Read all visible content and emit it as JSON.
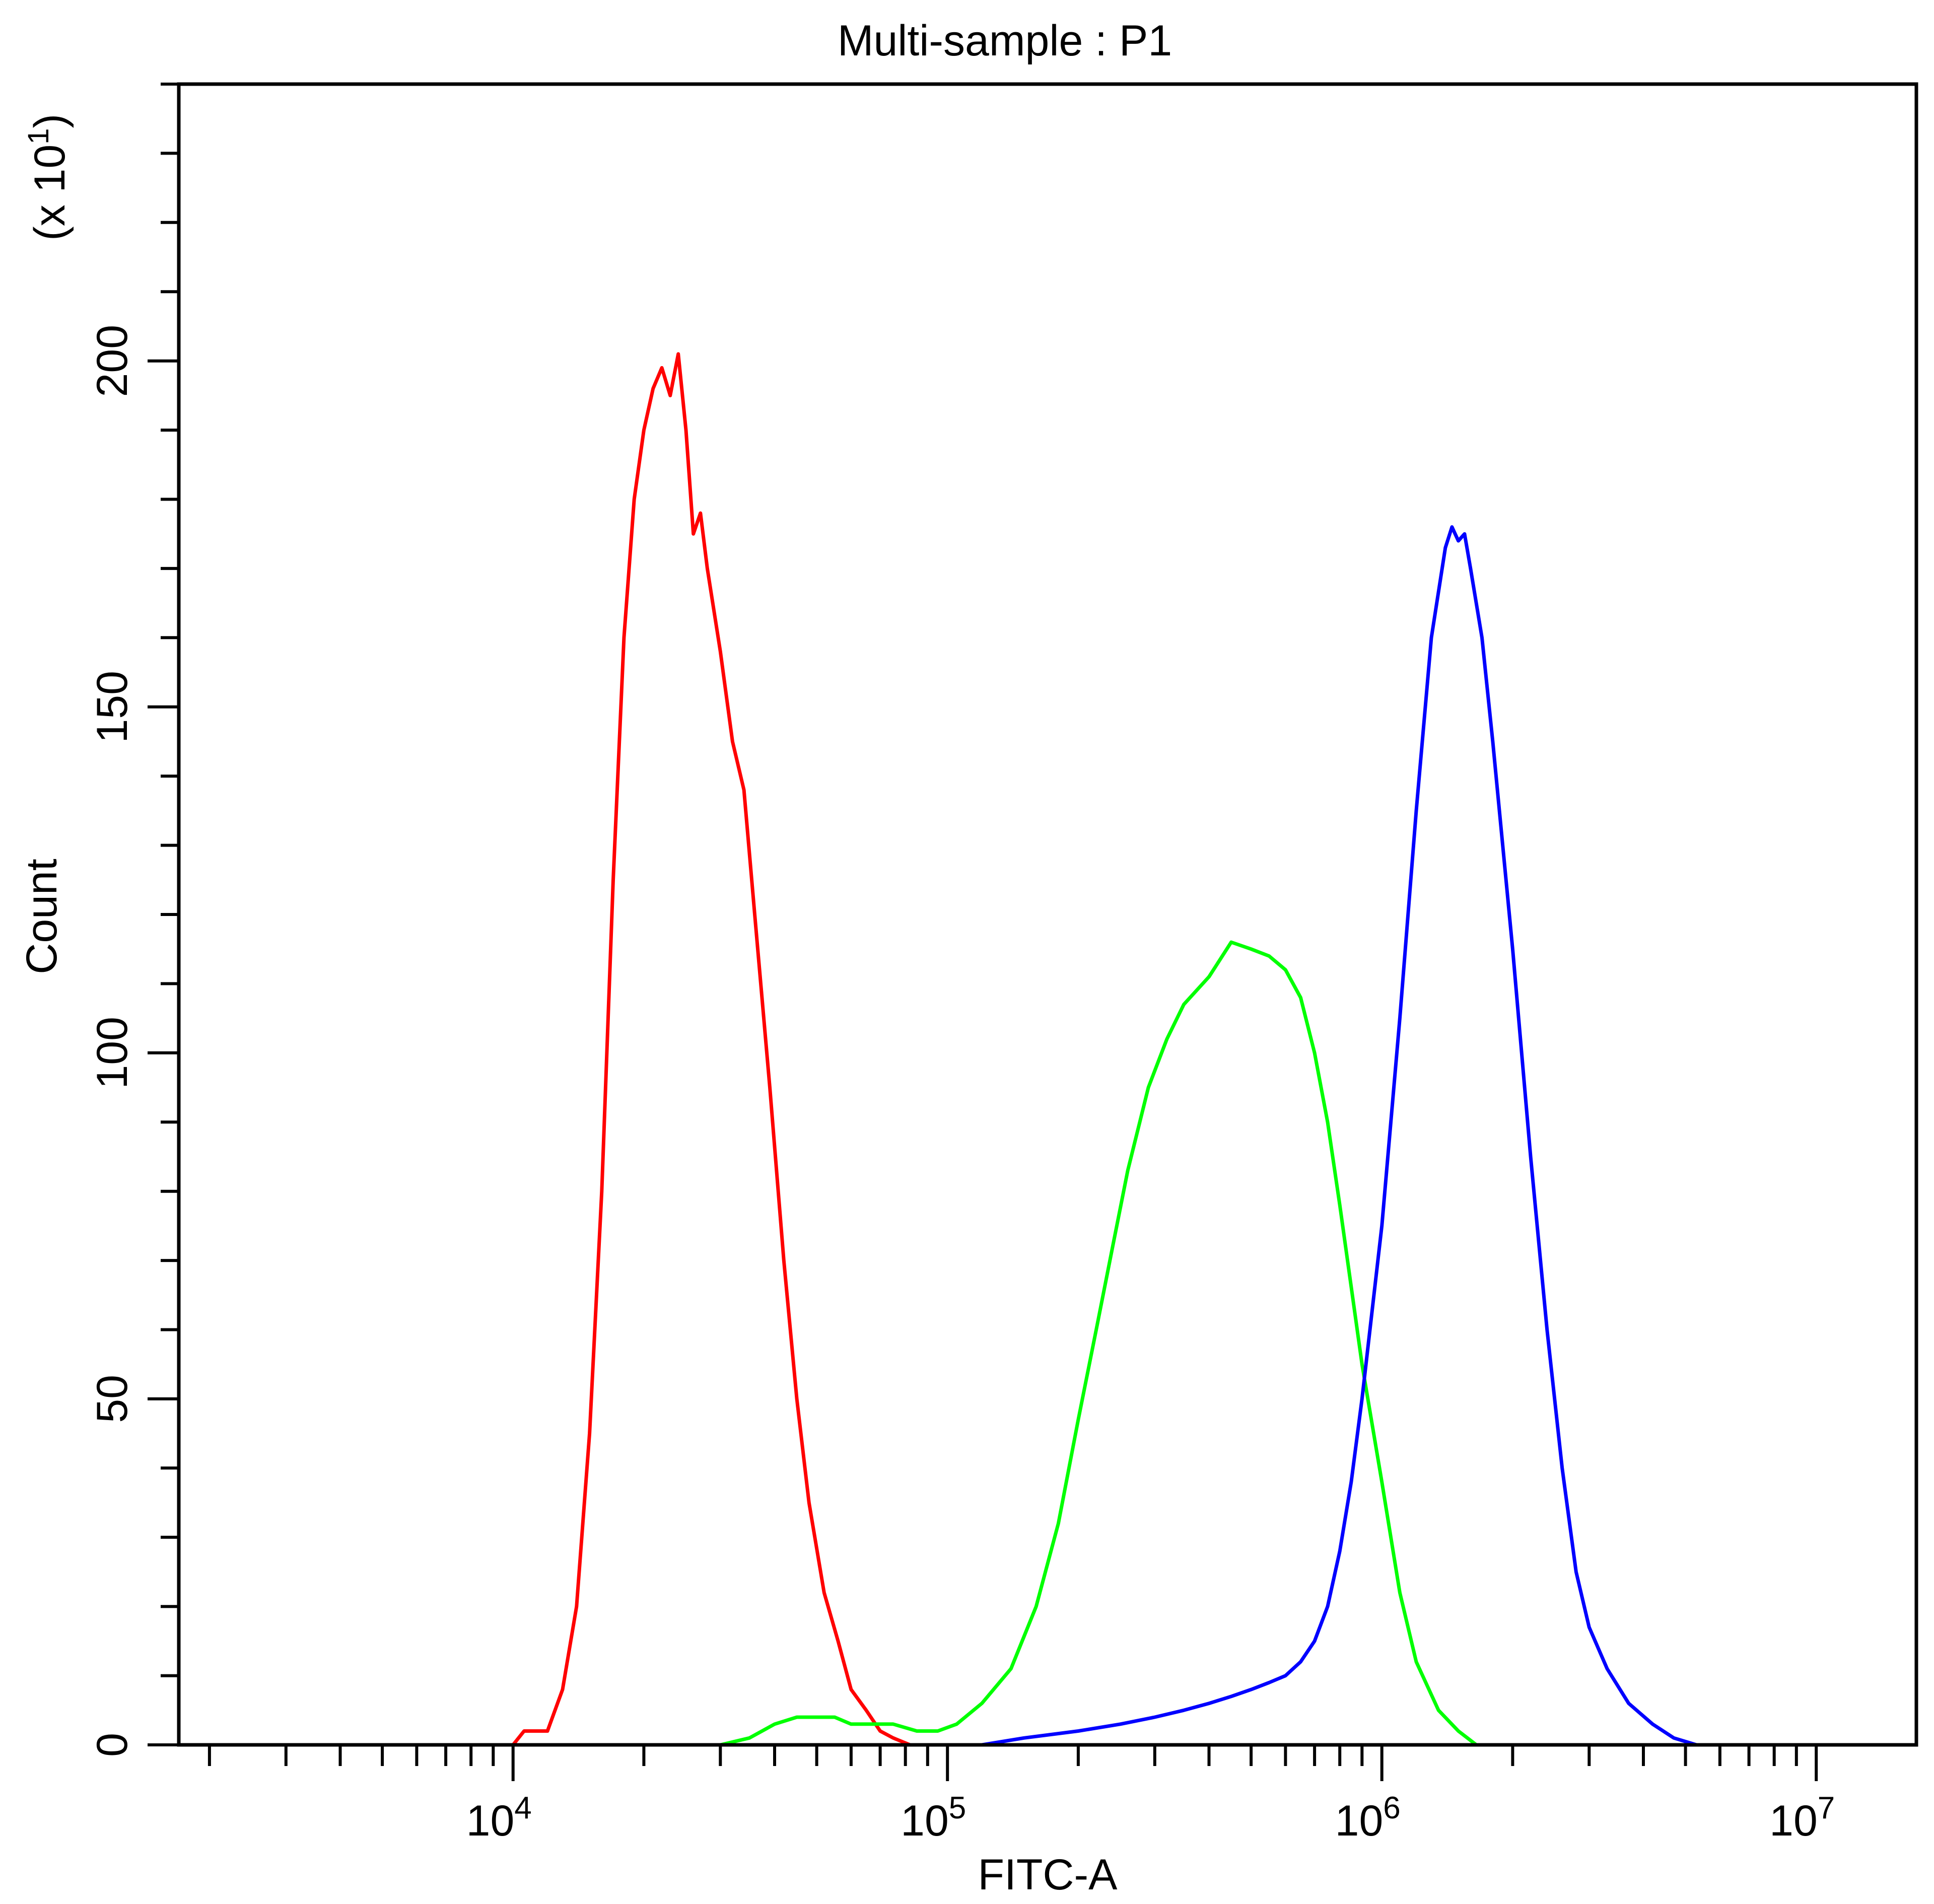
{
  "chart_data": {
    "type": "line",
    "title": "Multi-sample : P1",
    "xlabel": "FITC-A",
    "ylabel": "Count",
    "y_multiplier_label": "(x 10",
    "y_multiplier_exponent": "1",
    "y_multiplier_close": ")",
    "x_scale": "log",
    "xlim": [
      1700,
      17000000
    ],
    "ylim": [
      0,
      240
    ],
    "x_ticks": [
      {
        "value": 10000,
        "base": "10",
        "exp": "4"
      },
      {
        "value": 100000,
        "base": "10",
        "exp": "5"
      },
      {
        "value": 1000000,
        "base": "10",
        "exp": "6"
      },
      {
        "value": 10000000,
        "base": "10",
        "exp": "7"
      }
    ],
    "y_ticks": [
      0,
      50,
      100,
      150,
      200
    ],
    "grid": false,
    "legend": "none",
    "series": [
      {
        "color": "#ff0000",
        "points": [
          [
            10000,
            0
          ],
          [
            10600,
            2
          ],
          [
            12000,
            2
          ],
          [
            13000,
            8
          ],
          [
            14000,
            20
          ],
          [
            15000,
            45
          ],
          [
            16000,
            80
          ],
          [
            17000,
            125
          ],
          [
            18000,
            160
          ],
          [
            19000,
            180
          ],
          [
            20000,
            190
          ],
          [
            21000,
            196
          ],
          [
            22000,
            199
          ],
          [
            23000,
            195
          ],
          [
            24000,
            201
          ],
          [
            25000,
            190
          ],
          [
            26000,
            175
          ],
          [
            27000,
            178
          ],
          [
            28000,
            170
          ],
          [
            30000,
            158
          ],
          [
            32000,
            145
          ],
          [
            34000,
            138
          ],
          [
            36000,
            120
          ],
          [
            39000,
            95
          ],
          [
            42000,
            70
          ],
          [
            45000,
            50
          ],
          [
            48000,
            35
          ],
          [
            52000,
            22
          ],
          [
            56000,
            15
          ],
          [
            60000,
            8
          ],
          [
            65000,
            5
          ],
          [
            70000,
            2
          ],
          [
            75000,
            1
          ],
          [
            82000,
            0
          ]
        ]
      },
      {
        "color": "#00ff00",
        "points": [
          [
            30000,
            0
          ],
          [
            35000,
            1
          ],
          [
            40000,
            3
          ],
          [
            45000,
            4
          ],
          [
            50000,
            4
          ],
          [
            55000,
            4
          ],
          [
            60000,
            3
          ],
          [
            65000,
            3
          ],
          [
            70000,
            3
          ],
          [
            75000,
            3
          ],
          [
            85000,
            2
          ],
          [
            95000,
            2
          ],
          [
            105000,
            3
          ],
          [
            120000,
            6
          ],
          [
            140000,
            11
          ],
          [
            160000,
            20
          ],
          [
            180000,
            32
          ],
          [
            200000,
            47
          ],
          [
            220000,
            60
          ],
          [
            240000,
            72
          ],
          [
            260000,
            83
          ],
          [
            290000,
            95
          ],
          [
            320000,
            102
          ],
          [
            350000,
            107
          ],
          [
            400000,
            111
          ],
          [
            450000,
            116
          ],
          [
            500000,
            115
          ],
          [
            550000,
            114
          ],
          [
            600000,
            112
          ],
          [
            650000,
            108
          ],
          [
            700000,
            100
          ],
          [
            750000,
            90
          ],
          [
            800000,
            78
          ],
          [
            900000,
            55
          ],
          [
            1000000,
            38
          ],
          [
            1100000,
            22
          ],
          [
            1200000,
            12
          ],
          [
            1350000,
            5
          ],
          [
            1500000,
            2
          ],
          [
            1650000,
            0
          ]
        ]
      },
      {
        "color": "#0000ff",
        "points": [
          [
            90000,
            0
          ],
          [
            120000,
            0
          ],
          [
            150000,
            1
          ],
          [
            200000,
            2
          ],
          [
            250000,
            3
          ],
          [
            300000,
            4
          ],
          [
            350000,
            5
          ],
          [
            400000,
            6
          ],
          [
            450000,
            7
          ],
          [
            500000,
            8
          ],
          [
            550000,
            9
          ],
          [
            600000,
            10
          ],
          [
            650000,
            12
          ],
          [
            700000,
            15
          ],
          [
            750000,
            20
          ],
          [
            800000,
            28
          ],
          [
            850000,
            38
          ],
          [
            900000,
            50
          ],
          [
            1000000,
            75
          ],
          [
            1100000,
            105
          ],
          [
            1200000,
            135
          ],
          [
            1300000,
            160
          ],
          [
            1400000,
            173
          ],
          [
            1450000,
            176
          ],
          [
            1500000,
            174
          ],
          [
            1550000,
            175
          ],
          [
            1600000,
            170
          ],
          [
            1700000,
            160
          ],
          [
            1800000,
            145
          ],
          [
            2000000,
            115
          ],
          [
            2200000,
            85
          ],
          [
            2400000,
            60
          ],
          [
            2600000,
            40
          ],
          [
            2800000,
            25
          ],
          [
            3000000,
            17
          ],
          [
            3300000,
            11
          ],
          [
            3700000,
            6
          ],
          [
            4200000,
            3
          ],
          [
            4700000,
            1
          ],
          [
            5300000,
            0
          ]
        ]
      }
    ]
  }
}
